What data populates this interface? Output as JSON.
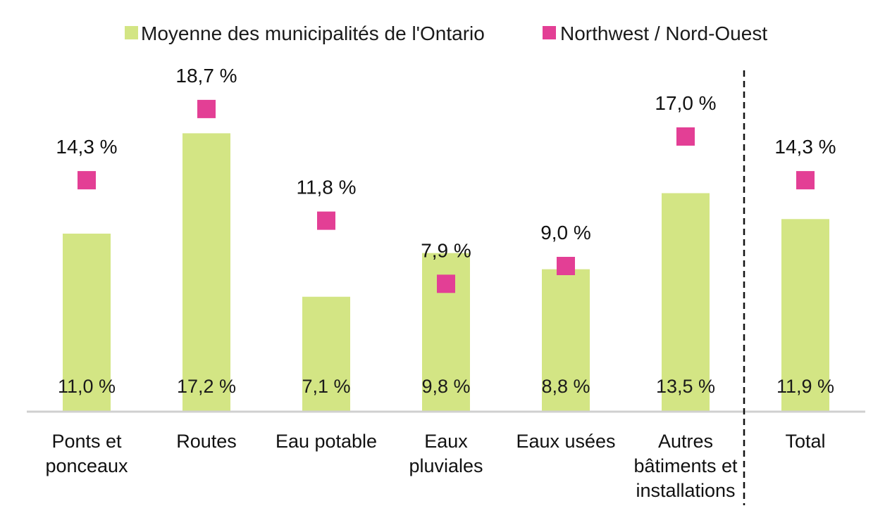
{
  "chart_data": {
    "type": "bar",
    "legend_position": "top",
    "categories": [
      [
        "Ponts et",
        "ponceaux"
      ],
      [
        "Routes"
      ],
      [
        "Eau potable"
      ],
      [
        "Eaux",
        "pluviales"
      ],
      [
        "Eaux usées"
      ],
      [
        "Autres",
        "bâtiments et",
        "installations"
      ],
      [
        "Total"
      ]
    ],
    "series": [
      {
        "name": "Moyenne des municipalités de l'Ontario",
        "kind": "bar",
        "color": "#d3e584",
        "values": [
          11.0,
          17.2,
          7.1,
          9.8,
          8.8,
          13.5,
          11.9
        ],
        "labels": [
          "11,0 %",
          "17,2 %",
          "7,1 %",
          "9,8 %",
          "8,8 %",
          "13,5 %",
          "11,9 %"
        ]
      },
      {
        "name": "Northwest / Nord-Ouest",
        "kind": "marker",
        "color": "#e33f95",
        "values": [
          14.3,
          18.7,
          11.8,
          7.9,
          9.0,
          17.0,
          14.3
        ],
        "labels": [
          "14,3 %",
          "18,7 %",
          "11,8 %",
          "7,9 %",
          "9,0 %",
          "17,0 %",
          "14,3 %"
        ]
      }
    ],
    "ylim": [
      0,
      20
    ],
    "grid": false,
    "separator_before_category": 6
  }
}
